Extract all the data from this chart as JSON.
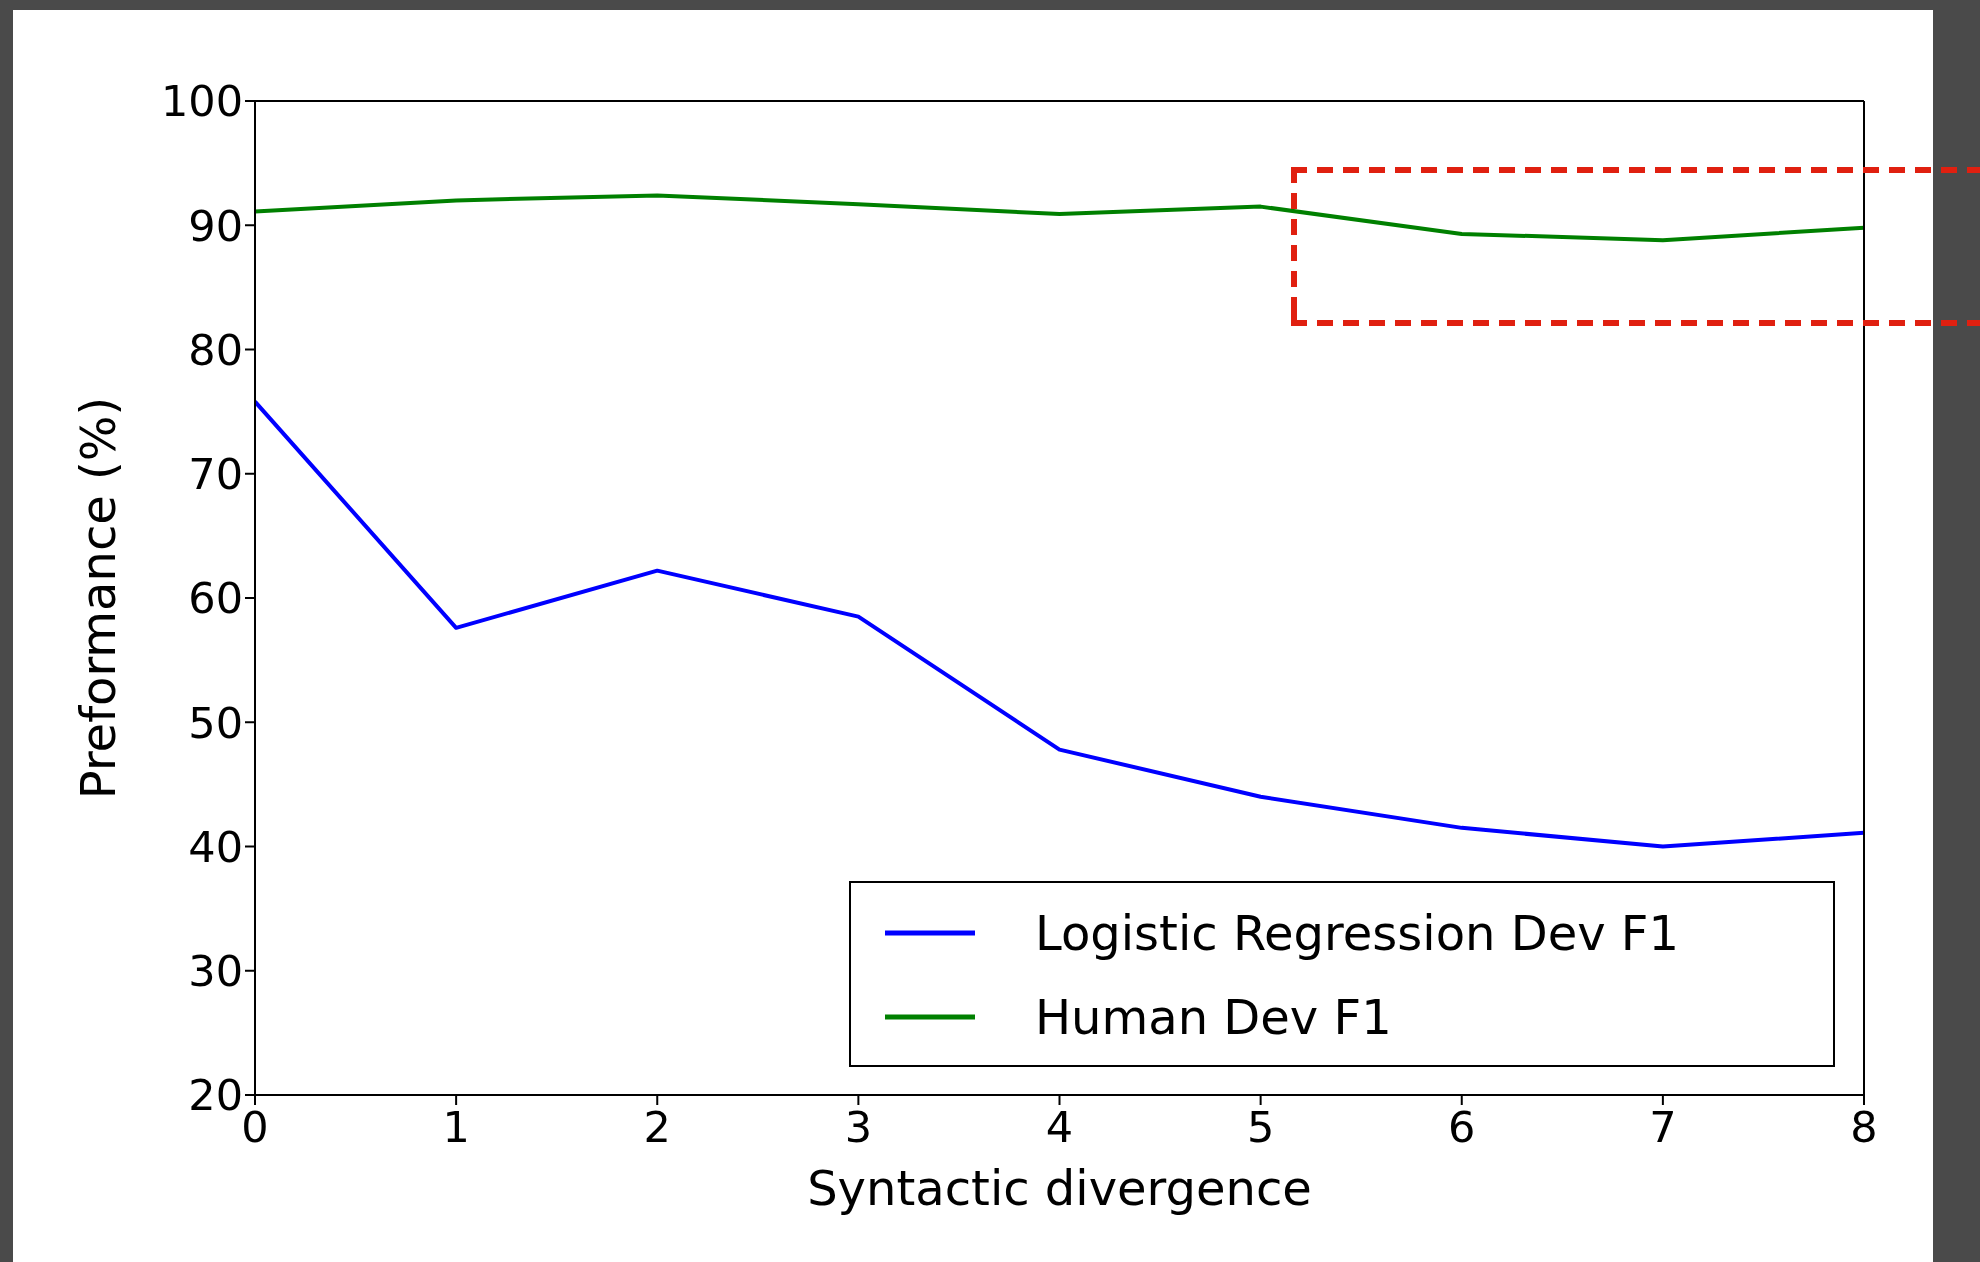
{
  "chart_data": {
    "type": "line",
    "xlabel": "Syntactic divergence",
    "ylabel": "Preformance (%)",
    "x": [
      0,
      1,
      2,
      3,
      4,
      5,
      6,
      7,
      8
    ],
    "series": [
      {
        "name": "Logistic Regression Dev F1",
        "color": "#0000ff",
        "values": [
          75.8,
          57.6,
          62.2,
          58.5,
          47.8,
          44.0,
          41.5,
          40.0,
          41.1
        ]
      },
      {
        "name": "Human Dev F1",
        "color": "#008000",
        "values": [
          91.1,
          92.0,
          92.4,
          91.7,
          90.9,
          91.5,
          89.3,
          88.8,
          89.8
        ]
      }
    ],
    "xlim": [
      0,
      8
    ],
    "xticks": [
      0,
      1,
      2,
      3,
      4,
      5,
      6,
      7,
      8
    ],
    "ylim": [
      20,
      100
    ],
    "yticks": [
      20,
      30,
      40,
      50,
      60,
      70,
      80,
      90,
      100
    ],
    "legend": "bottom right",
    "grid": false,
    "marker": "none",
    "line_style": "solid"
  }
}
